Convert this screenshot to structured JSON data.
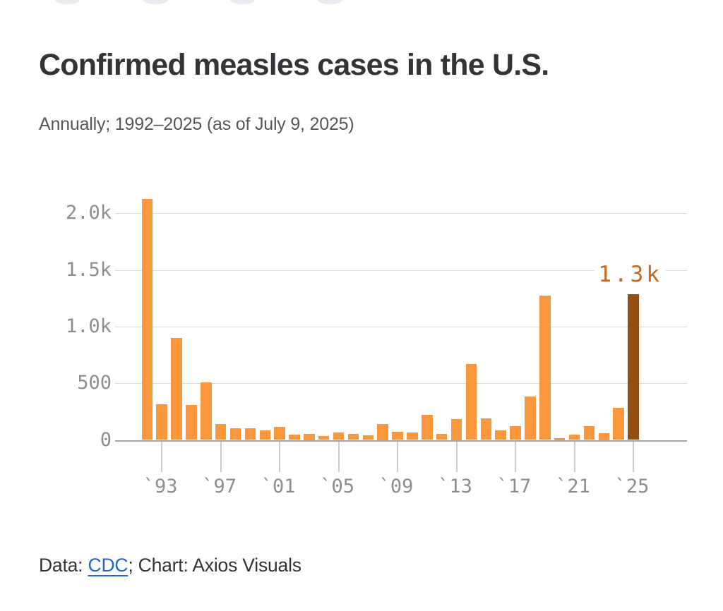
{
  "header": {
    "title": "Confirmed measles cases in the U.S.",
    "subtitle": "Annually; 1992–2025 (as of July 9, 2025)"
  },
  "chart_data": {
    "type": "bar",
    "title": "Confirmed measles cases in the U.S.",
    "subtitle": "Annually; 1992–2025 (as of July 9, 2025)",
    "categories": [
      "1992",
      "1993",
      "1994",
      "1995",
      "1996",
      "1997",
      "1998",
      "1999",
      "2000",
      "2001",
      "2002",
      "2003",
      "2004",
      "2005",
      "2006",
      "2007",
      "2008",
      "2009",
      "2010",
      "2011",
      "2012",
      "2013",
      "2014",
      "2015",
      "2016",
      "2017",
      "2018",
      "2019",
      "2020",
      "2021",
      "2022",
      "2023",
      "2024",
      "2025"
    ],
    "values": [
      2126,
      312,
      899,
      309,
      508,
      138,
      100,
      100,
      86,
      116,
      44,
      56,
      37,
      66,
      55,
      43,
      140,
      71,
      63,
      220,
      55,
      187,
      667,
      188,
      86,
      120,
      381,
      1274,
      13,
      49,
      121,
      59,
      285,
      1288
    ],
    "xlabel": "",
    "ylabel": "",
    "ylim": [
      0,
      2200
    ],
    "grid": true,
    "legend": "none",
    "y_ticks": [
      {
        "label": "2.0k",
        "value": 2000
      },
      {
        "label": "1.5k",
        "value": 1500
      },
      {
        "label": "1.0k",
        "value": 1000
      },
      {
        "label": "500",
        "value": 500
      },
      {
        "label": "0",
        "value": 0
      }
    ],
    "x_ticks": [
      {
        "label": "`93",
        "year": 1993
      },
      {
        "label": "`97",
        "year": 1997
      },
      {
        "label": "`01",
        "year": 2001
      },
      {
        "label": "`05",
        "year": 2005
      },
      {
        "label": "`09",
        "year": 2009
      },
      {
        "label": "`13",
        "year": 2013
      },
      {
        "label": "`17",
        "year": 2017
      },
      {
        "label": "`21",
        "year": 2021
      },
      {
        "label": "`25",
        "year": 2025
      }
    ],
    "annotation": {
      "label": "1.3k",
      "year": "2025"
    },
    "colors": {
      "bar": "#F8973B",
      "highlight_bar": "#914F10",
      "annotation": "#C8671B",
      "gridline": "#DCDCDC",
      "axis_line": "#A5A5A5",
      "tick_mark": "#CBCBCB",
      "axis_label": "#8E8E8E"
    },
    "highlight_category": "2025"
  },
  "footer": {
    "prefix": "Data: ",
    "link_label": "CDC",
    "suffix": "; Chart: Axios Visuals",
    "link_color": "#2664CE"
  }
}
